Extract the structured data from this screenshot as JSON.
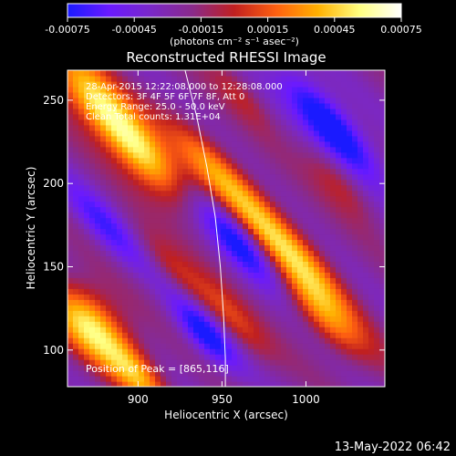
{
  "chart_data": {
    "type": "heatmap",
    "title": "Reconstructed RHESSI Image",
    "xlabel": "Heliocentric X (arcsec)",
    "ylabel": "Heliocentric Y (arcsec)",
    "xlim": [
      858,
      1047
    ],
    "ylim": [
      78,
      268
    ],
    "x_ticks": [
      "900",
      "950",
      "1000"
    ],
    "x_tick_values": [
      900,
      950,
      1000
    ],
    "y_ticks": [
      "100",
      "150",
      "200",
      "250"
    ],
    "y_tick_values": [
      100,
      150,
      200,
      250
    ],
    "colorbar": {
      "min": -0.00075,
      "max": 0.00075,
      "tick_labels": [
        "-0.00075",
        "-0.00045",
        "-0.00015",
        "0.00015",
        "0.00045",
        "0.00075"
      ],
      "tick_values": [
        -0.00075,
        -0.00045,
        -0.00015,
        0.00015,
        0.00045,
        0.00075
      ],
      "units_label": "(photons cm⁻² s⁻¹ asec⁻²)",
      "colors": [
        "#1a1aff",
        "#6a1aff",
        "#7a28c8",
        "#8a2a8a",
        "#c02020",
        "#ff6010",
        "#ffb000",
        "#ffff80",
        "#ffffff"
      ]
    },
    "annotations": [
      "28-Apr-2015 12:22:08.000 to 12:28:08.000",
      "Detectors: 3F 4F 5F 6F 7F 8F, Att 0",
      "Energy Range: 25.0 - 50.0 keV",
      "Clean     Total counts: 1.31E+04"
    ],
    "peak_label": "Position of Peak = [865,116]",
    "peak": {
      "x": 865,
      "y": 116
    },
    "limb": [
      [
        928,
        268
      ],
      [
        935,
        240
      ],
      [
        941,
        210
      ],
      [
        946,
        180
      ],
      [
        949,
        150
      ],
      [
        951,
        120
      ],
      [
        952,
        95
      ],
      [
        952,
        78
      ]
    ],
    "features": [
      {
        "x": 875,
        "y": 250,
        "level": 1.0,
        "sx": 30,
        "sy": 10,
        "angle": -48
      },
      {
        "x": 905,
        "y": 215,
        "level": 0.8,
        "sx": 25,
        "sy": 9,
        "angle": -48
      },
      {
        "x": 872,
        "y": 115,
        "level": 1.0,
        "sx": 22,
        "sy": 12,
        "angle": -48
      },
      {
        "x": 900,
        "y": 85,
        "level": 0.7,
        "sx": 18,
        "sy": 8,
        "angle": -48
      },
      {
        "x": 945,
        "y": 210,
        "level": 0.55,
        "sx": 30,
        "sy": 8,
        "angle": -48
      },
      {
        "x": 990,
        "y": 160,
        "level": 0.85,
        "sx": 40,
        "sy": 9,
        "angle": -48
      },
      {
        "x": 1010,
        "y": 120,
        "level": 0.55,
        "sx": 25,
        "sy": 8,
        "angle": -48
      },
      {
        "x": 955,
        "y": 120,
        "level": 0.45,
        "sx": 25,
        "sy": 7,
        "angle": -48
      },
      {
        "x": 920,
        "y": 150,
        "level": 0.35,
        "sx": 22,
        "sy": 6,
        "angle": -48
      },
      {
        "x": 1020,
        "y": 200,
        "level": 0.35,
        "sx": 20,
        "sy": 7,
        "angle": -48
      },
      {
        "x": 960,
        "y": 255,
        "level": 0.3,
        "sx": 20,
        "sy": 6,
        "angle": -48
      },
      {
        "x": 1015,
        "y": 235,
        "level": -0.9,
        "sx": 30,
        "sy": 8,
        "angle": -48
      },
      {
        "x": 960,
        "y": 165,
        "level": -0.7,
        "sx": 25,
        "sy": 7,
        "angle": -48
      },
      {
        "x": 940,
        "y": 110,
        "level": -0.7,
        "sx": 20,
        "sy": 7,
        "angle": -48
      },
      {
        "x": 880,
        "y": 175,
        "level": -0.45,
        "sx": 25,
        "sy": 7,
        "angle": -48
      }
    ]
  },
  "footer": {
    "timestamp": "13-May-2022 06:42"
  }
}
